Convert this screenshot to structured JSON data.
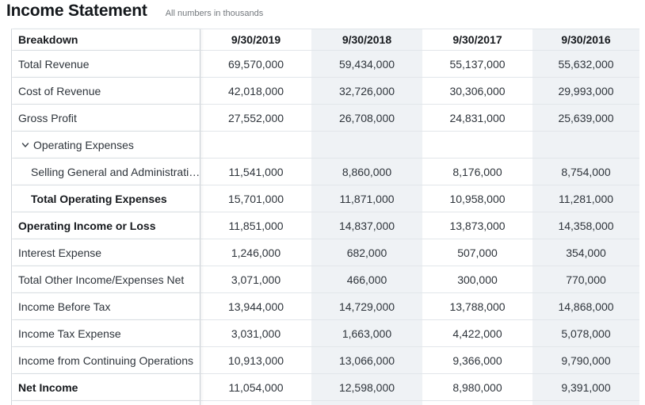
{
  "page": {
    "title": "Income Statement",
    "subtitle": "All numbers in thousands"
  },
  "colors": {
    "column_stripe": "#eff2f5",
    "row_border": "#e2e6ea",
    "column_divider": "#cbd0d6",
    "text": "#2e343b",
    "heading_text": "#16191d",
    "subtitle_text": "#74797e"
  },
  "icons": {
    "expand_icon": "chevron-down"
  },
  "table": {
    "columns": [
      "Breakdown",
      "9/30/2019",
      "9/30/2018",
      "9/30/2017",
      "9/30/2016"
    ],
    "rows": [
      {
        "label": "Total Revenue",
        "values": [
          "69,570,000",
          "59,434,000",
          "55,137,000",
          "55,632,000"
        ],
        "bold": false,
        "indent": 0,
        "expandable": false
      },
      {
        "label": "Cost of Revenue",
        "values": [
          "42,018,000",
          "32,726,000",
          "30,306,000",
          "29,993,000"
        ],
        "bold": false,
        "indent": 0,
        "expandable": false
      },
      {
        "label": "Gross Profit",
        "values": [
          "27,552,000",
          "26,708,000",
          "24,831,000",
          "25,639,000"
        ],
        "bold": false,
        "indent": 0,
        "expandable": false
      },
      {
        "label": "Operating Expenses",
        "values": [
          "",
          "",
          "",
          ""
        ],
        "bold": false,
        "indent": 0,
        "expandable": true
      },
      {
        "label": "Selling General and Administrati…",
        "values": [
          "11,541,000",
          "8,860,000",
          "8,176,000",
          "8,754,000"
        ],
        "bold": false,
        "indent": 1,
        "expandable": false
      },
      {
        "label": "Total Operating Expenses",
        "values": [
          "15,701,000",
          "11,871,000",
          "10,958,000",
          "11,281,000"
        ],
        "bold": true,
        "indent": 1,
        "expandable": false
      },
      {
        "label": "Operating Income or Loss",
        "values": [
          "11,851,000",
          "14,837,000",
          "13,873,000",
          "14,358,000"
        ],
        "bold": true,
        "indent": 0,
        "expandable": false
      },
      {
        "label": "Interest Expense",
        "values": [
          "1,246,000",
          "682,000",
          "507,000",
          "354,000"
        ],
        "bold": false,
        "indent": 0,
        "expandable": false
      },
      {
        "label": "Total Other Income/Expenses Net",
        "values": [
          "3,071,000",
          "466,000",
          "300,000",
          "770,000"
        ],
        "bold": false,
        "indent": 0,
        "expandable": false
      },
      {
        "label": "Income Before Tax",
        "values": [
          "13,944,000",
          "14,729,000",
          "13,788,000",
          "14,868,000"
        ],
        "bold": false,
        "indent": 0,
        "expandable": false
      },
      {
        "label": "Income Tax Expense",
        "values": [
          "3,031,000",
          "1,663,000",
          "4,422,000",
          "5,078,000"
        ],
        "bold": false,
        "indent": 0,
        "expandable": false
      },
      {
        "label": "Income from Continuing Operations",
        "values": [
          "10,913,000",
          "13,066,000",
          "9,366,000",
          "9,790,000"
        ],
        "bold": false,
        "indent": 0,
        "expandable": false
      },
      {
        "label": "Net Income",
        "values": [
          "11,054,000",
          "12,598,000",
          "8,980,000",
          "9,391,000"
        ],
        "bold": true,
        "indent": 0,
        "expandable": false
      }
    ]
  }
}
